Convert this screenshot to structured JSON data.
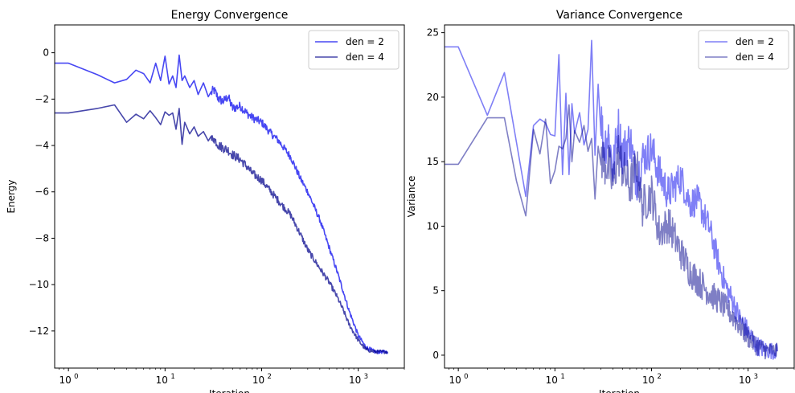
{
  "chart_data": [
    {
      "type": "line",
      "title": "Energy Convergence",
      "xlabel": "Iteration",
      "ylabel": "Energy",
      "xscale": "log",
      "xlim": [
        0.72,
        3000
      ],
      "ylim": [
        -13.6,
        1.2
      ],
      "x_ticks": [
        {
          "value": 1,
          "base": "10",
          "exp": "0"
        },
        {
          "value": 10,
          "base": "10",
          "exp": "1"
        },
        {
          "value": 100,
          "base": "10",
          "exp": "2"
        },
        {
          "value": 1000,
          "base": "10",
          "exp": "3"
        }
      ],
      "y_ticks": [
        {
          "value": 0,
          "label": "0"
        },
        {
          "value": -2,
          "label": "−2"
        },
        {
          "value": -4,
          "label": "−4"
        },
        {
          "value": -6,
          "label": "−6"
        },
        {
          "value": -8,
          "label": "−8"
        },
        {
          "value": -10,
          "label": "−10"
        },
        {
          "value": -12,
          "label": "−12"
        }
      ],
      "legend_position": "top-right",
      "series": [
        {
          "name": "den = 2",
          "color": "#0000ee",
          "opacity": 0.72,
          "x": [
            0.72,
            1,
            2,
            3,
            4,
            5,
            6,
            7,
            8,
            9,
            10,
            11,
            12,
            13,
            14,
            15,
            16,
            18,
            20,
            22,
            25,
            28,
            32,
            36,
            40,
            45,
            50,
            60,
            70,
            80,
            100,
            120,
            150,
            200,
            250,
            300,
            400,
            500,
            600,
            700,
            800,
            1000,
            1200,
            1500,
            2000
          ],
          "y": [
            -0.45,
            -0.45,
            -0.95,
            -1.3,
            -1.15,
            -0.75,
            -0.9,
            -1.3,
            -0.45,
            -1.2,
            -0.15,
            -1.35,
            -1.0,
            -1.5,
            -0.1,
            -1.2,
            -1.0,
            -1.5,
            -1.2,
            -1.8,
            -1.3,
            -1.9,
            -1.6,
            -2.0,
            -2.1,
            -1.9,
            -2.4,
            -2.3,
            -2.6,
            -2.8,
            -3.0,
            -3.4,
            -3.8,
            -4.5,
            -5.4,
            -6.0,
            -7.2,
            -8.4,
            -9.4,
            -10.3,
            -11.1,
            -12.2,
            -12.7,
            -12.9,
            -12.9
          ]
        },
        {
          "name": "den = 4",
          "color": "#00008b",
          "opacity": 0.72,
          "x": [
            0.72,
            1,
            2,
            3,
            4,
            5,
            6,
            7,
            8,
            9,
            10,
            11,
            12,
            13,
            14,
            15,
            16,
            18,
            20,
            22,
            25,
            28,
            32,
            36,
            40,
            45,
            50,
            60,
            70,
            80,
            100,
            120,
            150,
            200,
            250,
            300,
            400,
            500,
            600,
            700,
            800,
            1000,
            1200,
            1500,
            2000
          ],
          "y": [
            -2.6,
            -2.6,
            -2.4,
            -2.25,
            -3.0,
            -2.65,
            -2.85,
            -2.5,
            -2.8,
            -3.1,
            -2.55,
            -2.7,
            -2.6,
            -3.3,
            -2.4,
            -3.95,
            -3.0,
            -3.5,
            -3.2,
            -3.6,
            -3.4,
            -3.8,
            -3.7,
            -4.0,
            -4.1,
            -4.2,
            -4.4,
            -4.6,
            -4.9,
            -5.2,
            -5.5,
            -5.9,
            -6.4,
            -7.0,
            -7.8,
            -8.5,
            -9.3,
            -9.9,
            -10.5,
            -11.1,
            -11.7,
            -12.4,
            -12.8,
            -12.9,
            -12.9
          ]
        }
      ]
    },
    {
      "type": "line",
      "title": "Variance Convergence",
      "xlabel": "Iteration",
      "ylabel": "Variance",
      "xscale": "log",
      "xlim": [
        0.72,
        3000
      ],
      "ylim": [
        -1.0,
        25.6
      ],
      "x_ticks": [
        {
          "value": 1,
          "base": "10",
          "exp": "0"
        },
        {
          "value": 10,
          "base": "10",
          "exp": "1"
        },
        {
          "value": 100,
          "base": "10",
          "exp": "2"
        },
        {
          "value": 1000,
          "base": "10",
          "exp": "3"
        }
      ],
      "y_ticks": [
        {
          "value": 0,
          "label": "0"
        },
        {
          "value": 5,
          "label": "5"
        },
        {
          "value": 10,
          "label": "10"
        },
        {
          "value": 15,
          "label": "15"
        },
        {
          "value": 20,
          "label": "20"
        },
        {
          "value": 25,
          "label": "25"
        }
      ],
      "legend_position": "top-right",
      "series": [
        {
          "name": "den = 2",
          "color": "#0000ee",
          "opacity": 0.5,
          "x": [
            0.72,
            1,
            2,
            3,
            4,
            5,
            6,
            7,
            8,
            9,
            10,
            11,
            12,
            13,
            14,
            15,
            16,
            18,
            20,
            22,
            24,
            26,
            28,
            32,
            36,
            40,
            45,
            50,
            60,
            70,
            80,
            100,
            120,
            150,
            200,
            250,
            300,
            400,
            500,
            600,
            700,
            800,
            1000,
            1200,
            1500,
            2000
          ],
          "y": [
            23.9,
            23.9,
            18.6,
            21.9,
            16.5,
            12.3,
            17.8,
            18.3,
            18.0,
            17.1,
            17.0,
            23.3,
            14.0,
            20.3,
            14.0,
            19.5,
            17.2,
            18.8,
            16.3,
            17.5,
            24.4,
            15.5,
            21.0,
            16.2,
            17.2,
            14.2,
            17.8,
            15.6,
            16.8,
            13.5,
            15.2,
            16.0,
            14.1,
            12.5,
            13.8,
            11.8,
            12.0,
            9.8,
            7.0,
            5.2,
            4.1,
            3.0,
            1.8,
            0.8,
            0.4,
            0.3
          ]
        },
        {
          "name": "den = 4",
          "color": "#00008b",
          "opacity": 0.5,
          "x": [
            0.72,
            1,
            2,
            3,
            4,
            5,
            6,
            7,
            8,
            9,
            10,
            11,
            12,
            13,
            14,
            15,
            16,
            18,
            20,
            22,
            24,
            26,
            28,
            32,
            36,
            40,
            45,
            50,
            60,
            70,
            80,
            100,
            120,
            150,
            200,
            250,
            300,
            400,
            500,
            600,
            700,
            800,
            1000,
            1200,
            1500,
            2000
          ],
          "y": [
            14.8,
            14.8,
            18.4,
            18.4,
            13.5,
            10.8,
            17.5,
            15.6,
            18.3,
            13.3,
            14.3,
            16.2,
            16.0,
            16.8,
            19.4,
            15.0,
            17.4,
            16.5,
            17.8,
            15.8,
            16.8,
            12.1,
            16.2,
            15.0,
            14.6,
            13.2,
            15.8,
            14.5,
            13.0,
            14.8,
            11.5,
            12.6,
            9.5,
            10.2,
            8.0,
            6.5,
            5.8,
            4.8,
            4.2,
            3.6,
            3.0,
            2.4,
            1.4,
            0.8,
            0.4,
            0.3
          ]
        }
      ]
    }
  ]
}
